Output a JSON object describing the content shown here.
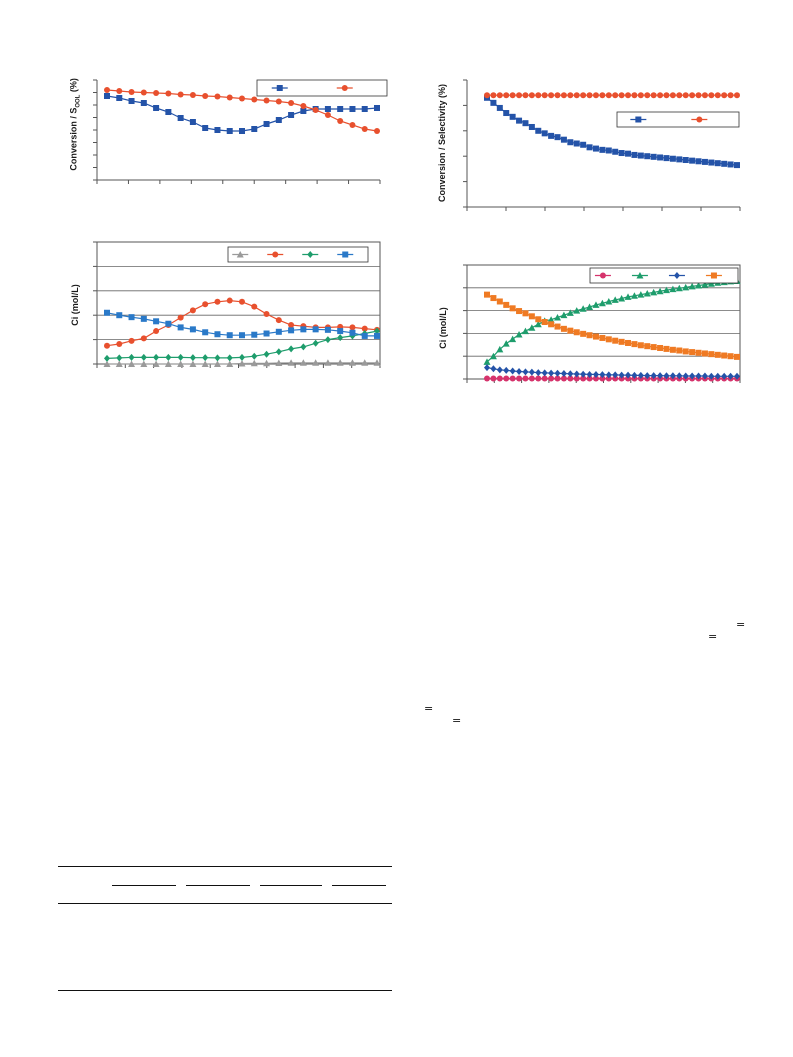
{
  "charts": {
    "c1": {
      "ylabel_main": "Conversion / S",
      "ylabel_sub": "OOL",
      "ylabel_tail": " (%)"
    },
    "c2": {
      "ylabel": "Ci (mol/L)"
    },
    "c3": {
      "ylabel": "Conversion / Selectivity (%)"
    },
    "c4": {
      "ylabel": "Ci (mol/L)"
    }
  },
  "equations": {
    "mark_a": "=",
    "mark_b": "=",
    "mark_c": "=",
    "mark_d": "="
  },
  "chart_data": [
    {
      "id": "c1",
      "type": "line",
      "ylim": [
        0,
        100
      ],
      "yticks": 8,
      "xticks": 9,
      "legend_location": "top-right",
      "series": [
        {
          "color": "#2453a8",
          "marker": "square",
          "values": [
            84,
            82,
            79,
            77,
            72,
            68,
            62,
            58,
            52,
            50,
            49,
            49,
            51,
            56,
            60,
            65,
            69,
            71,
            71,
            71,
            71,
            71,
            72
          ]
        },
        {
          "color": "#e8502e",
          "marker": "circle",
          "values": [
            90,
            89,
            88,
            87.5,
            87,
            86.5,
            85.5,
            85,
            84,
            83.5,
            82.5,
            81.5,
            80.5,
            79.5,
            78.5,
            77,
            74,
            70,
            65,
            59,
            55,
            51,
            49
          ]
        }
      ]
    },
    {
      "id": "c2",
      "type": "line",
      "ylim": [
        0,
        5
      ],
      "legend_location": "top-right",
      "series": [
        {
          "color": "#9a9a9a",
          "marker": "triangle",
          "values": [
            0,
            0,
            0,
            0,
            0,
            0,
            0,
            0,
            0,
            0,
            0,
            0.02,
            0.03,
            0.03,
            0.04,
            0.05,
            0.05,
            0.05,
            0.05,
            0.05,
            0.05,
            0.05,
            0.05
          ]
        },
        {
          "color": "#e8502e",
          "marker": "circle",
          "values": [
            0.75,
            0.82,
            0.95,
            1.05,
            1.35,
            1.6,
            1.9,
            2.2,
            2.45,
            2.55,
            2.6,
            2.55,
            2.35,
            2.05,
            1.8,
            1.6,
            1.55,
            1.5,
            1.5,
            1.52,
            1.5,
            1.45,
            1.4
          ]
        },
        {
          "color": "#1e9d6c",
          "marker": "diamond",
          "values": [
            0.23,
            0.25,
            0.27,
            0.27,
            0.27,
            0.27,
            0.27,
            0.26,
            0.26,
            0.25,
            0.25,
            0.27,
            0.32,
            0.4,
            0.5,
            0.62,
            0.7,
            0.85,
            1.0,
            1.08,
            1.15,
            1.25,
            1.35
          ]
        },
        {
          "color": "#2a79c8",
          "marker": "square",
          "values": [
            2.1,
            2.0,
            1.92,
            1.85,
            1.75,
            1.65,
            1.5,
            1.42,
            1.3,
            1.22,
            1.18,
            1.18,
            1.2,
            1.25,
            1.32,
            1.38,
            1.42,
            1.42,
            1.4,
            1.35,
            1.28,
            1.15,
            1.15
          ]
        }
      ]
    },
    {
      "id": "c3",
      "type": "line",
      "ylim": [
        0,
        100
      ],
      "yticks": 5,
      "xticks": 7,
      "legend_location": "right",
      "series": [
        {
          "color": "#2453a8",
          "marker": "square",
          "values": [
            86,
            82,
            78,
            74,
            71,
            68,
            66,
            63,
            60,
            58,
            56,
            55,
            53,
            51,
            50,
            49,
            47,
            46,
            45,
            44.5,
            43.5,
            42.5,
            42,
            41,
            40.5,
            40,
            39.5,
            39,
            38.5,
            38,
            37.5,
            37,
            36.5,
            36,
            35.5,
            35,
            34.5,
            34,
            33.5,
            33
          ]
        },
        {
          "color": "#e8502e",
          "marker": "circle",
          "values": [
            88,
            88,
            88,
            88,
            88,
            88,
            88,
            88,
            88,
            88,
            88,
            88,
            88,
            88,
            88,
            88,
            88,
            88,
            88,
            88,
            88,
            88,
            88,
            88,
            88,
            88,
            88,
            88,
            88,
            88,
            88,
            88,
            88,
            88,
            88,
            88,
            88,
            88,
            88,
            88
          ]
        }
      ]
    },
    {
      "id": "c4",
      "type": "line",
      "ylim": [
        0,
        5
      ],
      "legend_location": "top-right",
      "series": [
        {
          "color": "#d6336c",
          "marker": "circle",
          "values": [
            0.02,
            0.02,
            0.02,
            0.02,
            0.02,
            0.02,
            0.02,
            0.02,
            0.02,
            0.02,
            0.02,
            0.02,
            0.02,
            0.02,
            0.02,
            0.02,
            0.02,
            0.02,
            0.02,
            0.02,
            0.02,
            0.02,
            0.02,
            0.02,
            0.02,
            0.02,
            0.02,
            0.02,
            0.02,
            0.02,
            0.02,
            0.02,
            0.02,
            0.02,
            0.02,
            0.02,
            0.02,
            0.02,
            0.02,
            0.02
          ]
        },
        {
          "color": "#1e9d6c",
          "marker": "triangle",
          "values": [
            0.75,
            1.0,
            1.3,
            1.55,
            1.75,
            1.95,
            2.1,
            2.25,
            2.4,
            2.55,
            2.6,
            2.7,
            2.8,
            2.9,
            3.0,
            3.08,
            3.16,
            3.25,
            3.32,
            3.4,
            3.47,
            3.53,
            3.6,
            3.65,
            3.7,
            3.75,
            3.8,
            3.85,
            3.9,
            3.94,
            3.98,
            4.02,
            4.06,
            4.1,
            4.14,
            4.18,
            4.22,
            4.25,
            4.28,
            4.3
          ]
        },
        {
          "color": "#2453a8",
          "marker": "diamond",
          "values": [
            0.5,
            0.45,
            0.4,
            0.38,
            0.35,
            0.33,
            0.31,
            0.3,
            0.28,
            0.27,
            0.26,
            0.25,
            0.24,
            0.23,
            0.22,
            0.21,
            0.2,
            0.2,
            0.19,
            0.18,
            0.18,
            0.17,
            0.17,
            0.16,
            0.16,
            0.15,
            0.15,
            0.15,
            0.14,
            0.14,
            0.14,
            0.13,
            0.13,
            0.13,
            0.13,
            0.12,
            0.12,
            0.12,
            0.12,
            0.12
          ]
        },
        {
          "color": "#ef7a23",
          "marker": "square",
          "values": [
            3.7,
            3.55,
            3.4,
            3.25,
            3.1,
            2.98,
            2.88,
            2.75,
            2.62,
            2.5,
            2.4,
            2.3,
            2.2,
            2.12,
            2.05,
            1.98,
            1.92,
            1.86,
            1.8,
            1.74,
            1.68,
            1.63,
            1.58,
            1.53,
            1.48,
            1.44,
            1.4,
            1.36,
            1.32,
            1.28,
            1.25,
            1.21,
            1.18,
            1.15,
            1.12,
            1.09,
            1.06,
            1.03,
            1.0,
            0.97
          ]
        }
      ]
    }
  ]
}
